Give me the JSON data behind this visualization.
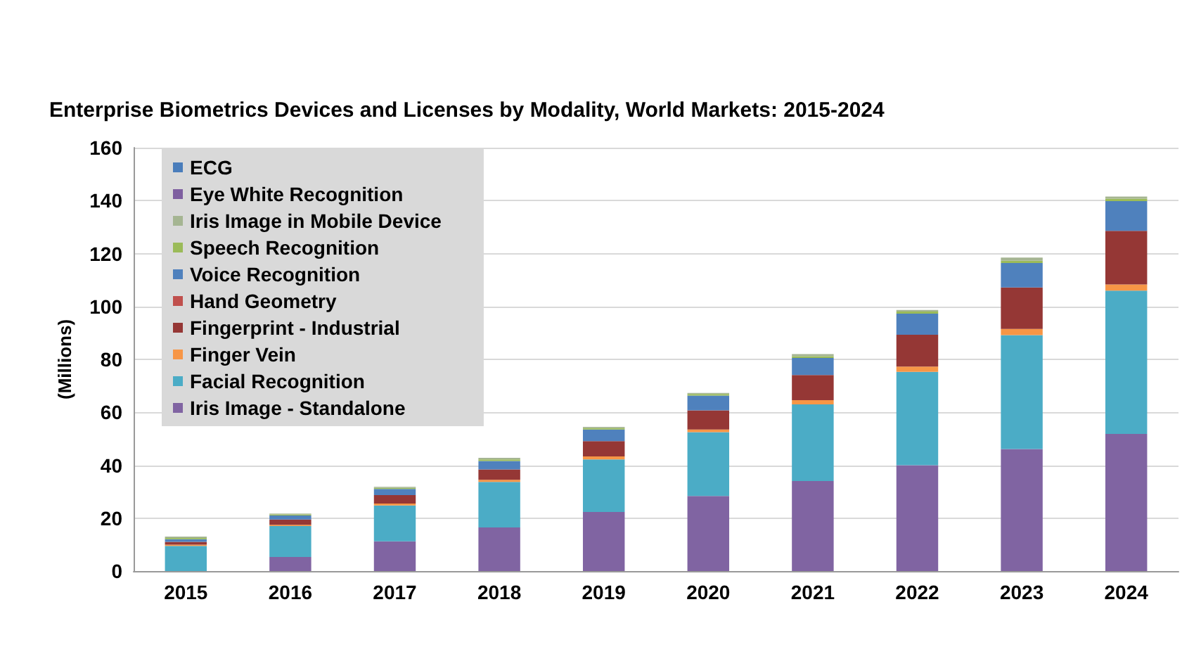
{
  "chart_data": {
    "type": "bar",
    "stacked": true,
    "title": "Enterprise Biometrics Devices and Licenses by Modality, World Markets: 2015-2024",
    "ylabel": "(Millions)",
    "categories": [
      "2015",
      "2016",
      "2017",
      "2018",
      "2019",
      "2020",
      "2021",
      "2022",
      "2023",
      "2024"
    ],
    "ylim": [
      0,
      160
    ],
    "yticks": [
      0,
      20,
      40,
      60,
      80,
      100,
      120,
      140,
      160
    ],
    "grid": "y",
    "legend": "top left",
    "series": [
      {
        "name": "Iris Image - Standalone",
        "color": "#8064a2",
        "values": [
          0,
          5.3,
          11.2,
          16.5,
          22.3,
          28.4,
          34.0,
          40.0,
          46.1,
          51.8
        ]
      },
      {
        "name": "Facial Recognition",
        "color": "#4bacc6",
        "values": [
          9.5,
          11.7,
          13.6,
          17.2,
          19.9,
          24.1,
          29.0,
          35.3,
          43.1,
          54.2
        ]
      },
      {
        "name": "Finger Vein",
        "color": "#f79646",
        "values": [
          0.5,
          0.5,
          0.7,
          0.8,
          1.1,
          1.0,
          1.6,
          2.0,
          2.3,
          2.3
        ]
      },
      {
        "name": "Fingerprint - Industrial",
        "color": "#953735",
        "values": [
          1,
          2,
          3.2,
          3.9,
          5.8,
          7.2,
          9.5,
          12.0,
          15.7,
          20.3
        ]
      },
      {
        "name": "Hand Geometry",
        "color": "#c0504d",
        "values": [
          null,
          null,
          null,
          null,
          null,
          null,
          null,
          null,
          null,
          null
        ]
      },
      {
        "name": "Voice Recognition",
        "color": "#4f81bd",
        "values": [
          1,
          1.5,
          2.3,
          3.2,
          4.4,
          5.6,
          6.4,
          8.0,
          9.2,
          11.2
        ]
      },
      {
        "name": "Speech Recognition",
        "color": "#9bbb59",
        "values": [
          0.5,
          0.4,
          0.4,
          0.6,
          0.5,
          0.6,
          0.7,
          0.8,
          0.9,
          0.9
        ]
      },
      {
        "name": "Iris Image in Mobile Device",
        "color": "#a5b592",
        "values": [
          0.5,
          0.3,
          0.4,
          0.6,
          0.5,
          0.4,
          0.8,
          0.6,
          1.2,
          0.8
        ]
      },
      {
        "name": "Eye White Recognition",
        "color": "#7e5fa0",
        "values": [
          null,
          null,
          null,
          null,
          null,
          null,
          null,
          null,
          null,
          null
        ]
      },
      {
        "name": "ECG",
        "color": "#4a7dbb",
        "values": [
          null,
          null,
          null,
          null,
          null,
          null,
          null,
          null,
          null,
          null
        ]
      }
    ]
  }
}
